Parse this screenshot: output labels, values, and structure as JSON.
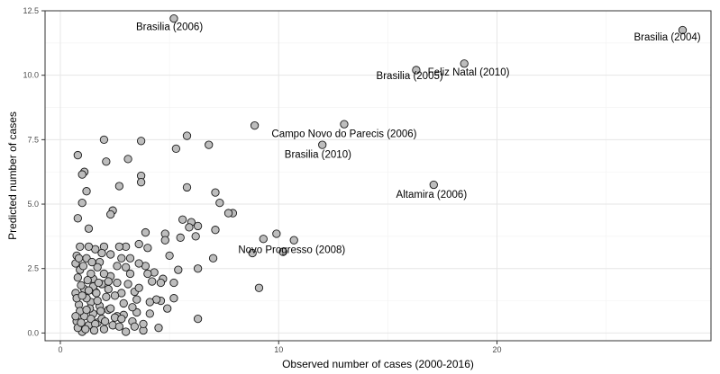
{
  "chart_data": {
    "type": "scatter",
    "title": "",
    "xlabel": "Observed number of cases (2000-2016)",
    "ylabel": "Predicted number of cases",
    "xlim": [
      -0.7,
      29.8
    ],
    "ylim": [
      -0.3,
      12.5
    ],
    "x_ticks": [
      0,
      10,
      20
    ],
    "y_ticks": [
      0.0,
      2.5,
      5.0,
      7.5,
      10.0,
      12.5
    ],
    "x_tick_labels": [
      "0",
      "10",
      "20"
    ],
    "y_tick_labels": [
      "0.0",
      "2.5",
      "5.0",
      "7.5",
      "10.0",
      "12.5"
    ],
    "grid": true,
    "legend": "none",
    "point_color": "#bdbdbd",
    "point_edge_color": "#1a1a1a",
    "points": [
      [
        28.5,
        11.75
      ],
      [
        5.2,
        12.2
      ],
      [
        18.5,
        10.45
      ],
      [
        16.3,
        10.2
      ],
      [
        13.0,
        8.1
      ],
      [
        8.9,
        8.05
      ],
      [
        12.0,
        7.3
      ],
      [
        17.1,
        5.75
      ],
      [
        10.7,
        3.6
      ],
      [
        10.2,
        3.15
      ],
      [
        9.9,
        3.85
      ],
      [
        9.3,
        3.65
      ],
      [
        8.8,
        3.1
      ],
      [
        9.1,
        1.75
      ],
      [
        7.9,
        4.65
      ],
      [
        7.7,
        4.65
      ],
      [
        7.3,
        5.05
      ],
      [
        7.1,
        5.45
      ],
      [
        7.1,
        4.0
      ],
      [
        7.0,
        2.9
      ],
      [
        6.8,
        7.3
      ],
      [
        6.3,
        4.15
      ],
      [
        6.2,
        3.75
      ],
      [
        6.3,
        2.5
      ],
      [
        6.3,
        0.55
      ],
      [
        6.0,
        4.3
      ],
      [
        5.9,
        4.1
      ],
      [
        5.8,
        7.65
      ],
      [
        5.8,
        5.65
      ],
      [
        5.6,
        4.4
      ],
      [
        5.5,
        3.7
      ],
      [
        5.4,
        2.45
      ],
      [
        5.3,
        7.15
      ],
      [
        5.2,
        1.95
      ],
      [
        5.2,
        1.35
      ],
      [
        5.0,
        3.0
      ],
      [
        4.9,
        0.95
      ],
      [
        4.8,
        3.85
      ],
      [
        4.8,
        3.6
      ],
      [
        4.7,
        2.1
      ],
      [
        4.6,
        1.95
      ],
      [
        4.6,
        1.25
      ],
      [
        4.5,
        0.2
      ],
      [
        4.4,
        1.3
      ],
      [
        4.3,
        2.35
      ],
      [
        4.2,
        2.0
      ],
      [
        4.1,
        1.2
      ],
      [
        4.0,
        3.3
      ],
      [
        4.0,
        2.3
      ],
      [
        3.9,
        3.9
      ],
      [
        3.9,
        2.6
      ],
      [
        3.8,
        0.1
      ],
      [
        3.8,
        0.35
      ],
      [
        3.7,
        6.1
      ],
      [
        3.7,
        5.85
      ],
      [
        3.7,
        7.45
      ],
      [
        3.6,
        3.45
      ],
      [
        3.6,
        2.7
      ],
      [
        3.5,
        1.3
      ],
      [
        3.5,
        0.8
      ],
      [
        3.4,
        1.6
      ],
      [
        3.3,
        0.45
      ],
      [
        3.2,
        2.9
      ],
      [
        3.2,
        2.3
      ],
      [
        3.1,
        6.75
      ],
      [
        3.1,
        1.9
      ],
      [
        3.0,
        3.35
      ],
      [
        3.0,
        2.55
      ],
      [
        2.9,
        0.7
      ],
      [
        2.9,
        1.15
      ],
      [
        2.8,
        2.9
      ],
      [
        2.8,
        1.55
      ],
      [
        2.7,
        5.7
      ],
      [
        2.7,
        3.35
      ],
      [
        2.6,
        1.95
      ],
      [
        2.6,
        0.65
      ],
      [
        2.6,
        2.6
      ],
      [
        2.5,
        1.45
      ],
      [
        2.4,
        4.75
      ],
      [
        2.3,
        4.6
      ],
      [
        2.3,
        3.05
      ],
      [
        2.3,
        2.2
      ],
      [
        2.2,
        0.9
      ],
      [
        2.2,
        1.7
      ],
      [
        2.1,
        6.65
      ],
      [
        2.0,
        7.5
      ],
      [
        2.0,
        3.35
      ],
      [
        2.0,
        2.3
      ],
      [
        1.9,
        3.1
      ],
      [
        1.9,
        1.9
      ],
      [
        1.8,
        1.05
      ],
      [
        1.8,
        2.75
      ],
      [
        1.7,
        0.4
      ],
      [
        1.7,
        2.55
      ],
      [
        1.6,
        3.25
      ],
      [
        1.6,
        1.6
      ],
      [
        1.5,
        2.1
      ],
      [
        1.5,
        0.75
      ],
      [
        1.4,
        2.3
      ],
      [
        1.4,
        1.2
      ],
      [
        1.3,
        4.05
      ],
      [
        1.3,
        3.35
      ],
      [
        1.3,
        0.3
      ],
      [
        1.2,
        2.9
      ],
      [
        1.2,
        5.5
      ],
      [
        1.1,
        6.25
      ],
      [
        1.1,
        1.7
      ],
      [
        1.0,
        5.05
      ],
      [
        1.0,
        6.15
      ],
      [
        0.9,
        3.35
      ],
      [
        0.9,
        2.45
      ],
      [
        0.8,
        6.9
      ],
      [
        0.8,
        4.45
      ],
      [
        0.8,
        2.15
      ],
      [
        0.75,
        3.0
      ],
      [
        0.7,
        1.55
      ],
      [
        0.7,
        2.7
      ],
      [
        1.1,
        0.65
      ],
      [
        1.0,
        0.05
      ],
      [
        0.85,
        1.1
      ],
      [
        0.75,
        0.45
      ],
      [
        1.2,
        1.35
      ],
      [
        1.4,
        0.55
      ],
      [
        1.6,
        0.35
      ],
      [
        1.9,
        0.55
      ],
      [
        2.0,
        0.15
      ],
      [
        2.4,
        0.3
      ],
      [
        2.7,
        0.25
      ],
      [
        3.0,
        0.05
      ],
      [
        3.3,
        1.0
      ],
      [
        1.5,
        1.8
      ],
      [
        1.7,
        1.25
      ],
      [
        1.25,
        2.05
      ],
      [
        0.95,
        1.85
      ],
      [
        1.35,
        0.95
      ],
      [
        2.1,
        1.4
      ],
      [
        2.3,
        0.95
      ],
      [
        2.5,
        0.6
      ],
      [
        0.9,
        0.85
      ],
      [
        1.05,
        2.6
      ],
      [
        1.45,
        2.75
      ],
      [
        1.15,
        0.15
      ],
      [
        0.8,
        0.2
      ],
      [
        1.55,
        0.1
      ],
      [
        1.85,
        0.85
      ],
      [
        2.05,
        0.45
      ],
      [
        1.65,
        1.55
      ],
      [
        1.3,
        1.65
      ],
      [
        0.7,
        0.65
      ],
      [
        0.75,
        1.35
      ],
      [
        2.8,
        0.55
      ],
      [
        3.4,
        0.25
      ],
      [
        4.1,
        0.75
      ],
      [
        3.6,
        1.75
      ],
      [
        0.95,
        0.4
      ],
      [
        1.75,
        1.95
      ],
      [
        2.2,
        2.0
      ],
      [
        0.85,
        2.9
      ],
      [
        1.2,
        0.9
      ],
      [
        1.0,
        1.45
      ]
    ],
    "annotations": [
      {
        "text": "Brasilia (2006)",
        "x": 5.0,
        "y": 11.85
      },
      {
        "text": "Brasilia (2004)",
        "x": 27.8,
        "y": 11.45
      },
      {
        "text": "Feliz Natal (2010)",
        "x": 18.7,
        "y": 10.1
      },
      {
        "text": "Brasilia (2005)",
        "x": 16.0,
        "y": 9.95
      },
      {
        "text": "Campo Novo do Parecis (2006)",
        "x": 13.0,
        "y": 7.7
      },
      {
        "text": "Brasilia (2010)",
        "x": 11.8,
        "y": 6.9
      },
      {
        "text": "Altamira (2006)",
        "x": 17.0,
        "y": 5.35
      },
      {
        "text": "Novo Progresso (2008)",
        "x": 10.6,
        "y": 3.2
      }
    ]
  }
}
